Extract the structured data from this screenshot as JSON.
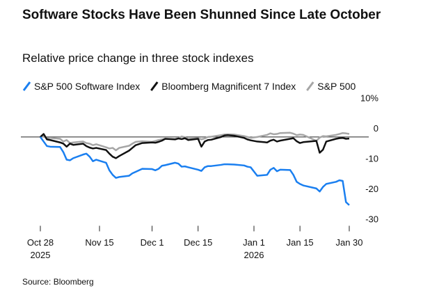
{
  "chart_data": {
    "type": "line",
    "title": "Software Stocks Have Been Shunned Since Late October",
    "subtitle": "Relative price change in three stock indexes",
    "source": "Source: Bloomberg",
    "x": [
      "2025-10-28",
      "2025-10-29",
      "2025-10-30",
      "2025-10-31",
      "2025-11-03",
      "2025-11-04",
      "2025-11-05",
      "2025-11-06",
      "2025-11-07",
      "2025-11-10",
      "2025-11-11",
      "2025-11-12",
      "2025-11-13",
      "2025-11-14",
      "2025-11-17",
      "2025-11-18",
      "2025-11-19",
      "2025-11-20",
      "2025-11-21",
      "2025-11-24",
      "2025-11-25",
      "2025-11-26",
      "2025-11-28",
      "2025-12-01",
      "2025-12-02",
      "2025-12-03",
      "2025-12-04",
      "2025-12-05",
      "2025-12-08",
      "2025-12-09",
      "2025-12-10",
      "2025-12-11",
      "2025-12-12",
      "2025-12-15",
      "2025-12-16",
      "2025-12-17",
      "2025-12-18",
      "2025-12-19",
      "2025-12-22",
      "2025-12-23",
      "2025-12-24",
      "2025-12-26",
      "2025-12-29",
      "2025-12-30",
      "2025-12-31",
      "2026-01-02",
      "2026-01-05",
      "2026-01-06",
      "2026-01-07",
      "2026-01-08",
      "2026-01-09",
      "2026-01-12",
      "2026-01-13",
      "2026-01-14",
      "2026-01-15",
      "2026-01-16",
      "2026-01-20",
      "2026-01-21",
      "2026-01-22",
      "2026-01-23",
      "2026-01-26",
      "2026-01-27",
      "2026-01-28",
      "2026-01-29",
      "2026-01-30"
    ],
    "series": [
      {
        "name": "S&P 500 Software Index",
        "color": "#1a7ff0",
        "values": [
          0,
          -1.5,
          -3,
          -3.2,
          -3.3,
          -5,
          -7.5,
          -7.7,
          -7,
          -5.8,
          -5.5,
          -6.5,
          -8,
          -7.5,
          -8.5,
          -11,
          -12.5,
          -13.5,
          -13.2,
          -12.8,
          -12,
          -11.5,
          -10.5,
          -10.6,
          -11,
          -10.5,
          -9.5,
          -9.3,
          -8.5,
          -8.8,
          -9.8,
          -9.7,
          -10,
          -10.8,
          -11.2,
          -10,
          -9.6,
          -9.6,
          -9.2,
          -9,
          -9,
          -9.1,
          -9.4,
          -9.8,
          -10,
          -12.8,
          -12.5,
          -10.8,
          -10.2,
          -11.3,
          -10.8,
          -10.9,
          -12.5,
          -14.8,
          -15.5,
          -16,
          -17,
          -18,
          -16.5,
          -15.5,
          -14.8,
          -14.3,
          -14.5,
          -21.5,
          -22.5
        ]
      },
      {
        "name": "Bloomberg Magnificent 7 Index",
        "color": "#111111",
        "values": [
          0,
          1,
          -0.8,
          -1,
          -1.8,
          -2.2,
          -3.2,
          -2.2,
          -2.6,
          -2.2,
          -3,
          -3.5,
          -3.8,
          -3.6,
          -4.3,
          -5.5,
          -6.5,
          -7,
          -6.3,
          -4.5,
          -3.6,
          -2.7,
          -2,
          -1.8,
          -1.9,
          -1.6,
          -1.2,
          -0.6,
          -0.8,
          -0.5,
          -0.7,
          -0.4,
          -1,
          -0.6,
          -3.2,
          -1.5,
          -1,
          -0.9,
          0,
          0.5,
          0.6,
          0.4,
          -0.3,
          -0.8,
          -1.1,
          -1.5,
          -1.8,
          -1.2,
          -0.9,
          -1.5,
          -1.2,
          -0.6,
          -0.4,
          -1.4,
          -2,
          -1.7,
          -1.3,
          -5.2,
          -4.2,
          -1.5,
          -0.6,
          -0.4,
          -0.3,
          -0.6,
          -0.5
        ]
      },
      {
        "name": "S&P 500",
        "color": "#a6a6a6",
        "values": [
          0,
          0.3,
          -0.5,
          -0.3,
          -0.6,
          -1.5,
          -1,
          -2,
          -1.8,
          -1.5,
          -2,
          -2.2,
          -2.7,
          -2.4,
          -3.4,
          -3.8,
          -3.6,
          -4.4,
          -3.6,
          -2.9,
          -2.2,
          -1.6,
          -1.4,
          -1.6,
          -1.3,
          -1,
          -0.8,
          -0.6,
          -0.7,
          -0.5,
          0.2,
          -0.1,
          -0.6,
          -0.4,
          -0.8,
          -0.5,
          0,
          0.1,
          0.6,
          0.8,
          0.9,
          0.8,
          0.3,
          0,
          -0.3,
          0,
          0.7,
          1.2,
          0.9,
          1,
          1.3,
          1.4,
          1.1,
          0.6,
          0.8,
          0.7,
          -1.3,
          -0.2,
          0.3,
          0.2,
          0.7,
          1,
          1.3,
          1.2,
          1
        ]
      }
    ],
    "xlim": [
      "2025-10-28",
      "2026-01-30"
    ],
    "xticks": [
      {
        "value": "2025-10-28",
        "label": "Oct 28",
        "year": "2025"
      },
      {
        "value": "2025-11-15",
        "label": "Nov 15"
      },
      {
        "value": "2025-12-01",
        "label": "Dec 1"
      },
      {
        "value": "2025-12-15",
        "label": "Dec 15"
      },
      {
        "value": "2026-01-01",
        "label": "Jan 1",
        "year": "2026"
      },
      {
        "value": "2026-01-15",
        "label": "Jan 15"
      },
      {
        "value": "2026-01-30",
        "label": "Jan 30"
      }
    ],
    "ylim": [
      -30,
      11
    ],
    "yticks": [
      {
        "value": 10,
        "label": "10%"
      },
      0,
      -10,
      -20,
      -30
    ],
    "zero_line": true,
    "grid": false
  }
}
